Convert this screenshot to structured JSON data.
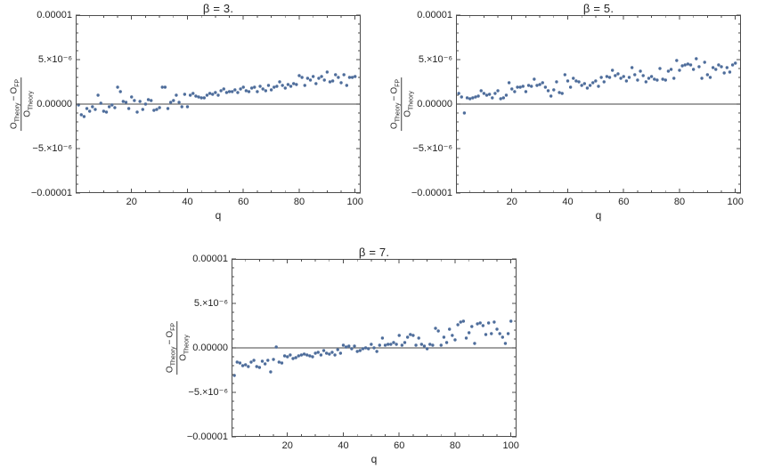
{
  "figure": {
    "background": "#ffffff",
    "point_color": "#4e6d9b",
    "frame_color": "#4c4c4c",
    "zero_line_color": "#6b6b6b",
    "text_color": "#242424"
  },
  "chart_data": [
    {
      "type": "scatter",
      "title": "β = 3.",
      "xlabel": "q",
      "ylabel": "(O_Theory − O_FP) / O_Theory",
      "ylabel_parts": {
        "num_base_a": "O",
        "num_sub_a": "Theory",
        "num_op": "−",
        "num_base_b": "O",
        "num_sub_b": "FP",
        "den_base": "O",
        "den_sub": "Theory"
      },
      "xlim": [
        0,
        102
      ],
      "ylim": [
        -1e-05,
        1e-05
      ],
      "x_ticks": [
        20,
        40,
        60,
        80,
        100
      ],
      "x_minor_step": 5,
      "y_ticks": [
        {
          "value": 1e-05,
          "label": "0.00001"
        },
        {
          "value": 5e-06,
          "label": "5.×10⁻⁶"
        },
        {
          "value": 0,
          "label": "0.00000"
        },
        {
          "value": -5e-06,
          "label": "−5.×10⁻⁶"
        },
        {
          "value": -1e-05,
          "label": "−0.00001"
        }
      ],
      "y_minor_step": 1e-06,
      "zero_line": true,
      "grid": false,
      "legend": null,
      "x": [
        1,
        2,
        3,
        4,
        5,
        6,
        7,
        8,
        9,
        10,
        11,
        12,
        13,
        14,
        15,
        16,
        17,
        18,
        19,
        20,
        21,
        22,
        23,
        24,
        25,
        26,
        27,
        28,
        29,
        30,
        31,
        32,
        33,
        34,
        35,
        36,
        37,
        38,
        39,
        40,
        41,
        42,
        43,
        44,
        45,
        46,
        47,
        48,
        49,
        50,
        51,
        52,
        53,
        54,
        55,
        56,
        57,
        58,
        59,
        60,
        61,
        62,
        63,
        64,
        65,
        66,
        67,
        68,
        69,
        70,
        71,
        72,
        73,
        74,
        75,
        76,
        77,
        78,
        79,
        80,
        81,
        82,
        83,
        84,
        85,
        86,
        87,
        88,
        89,
        90,
        91,
        92,
        93,
        94,
        95,
        96,
        97,
        98,
        99,
        100
      ],
      "y": [
        -1e-07,
        -1.2e-06,
        -1.4e-06,
        -5e-07,
        -8e-07,
        -3e-07,
        -6e-07,
        1e-06,
        1e-07,
        -8e-07,
        -9e-07,
        -3e-07,
        -1e-07,
        -4e-07,
        1.9e-06,
        1.4e-06,
        3e-07,
        2e-07,
        -5e-07,
        8e-07,
        4e-07,
        -9e-07,
        3e-07,
        -6e-07,
        0,
        5e-07,
        4e-07,
        -7e-07,
        -6e-07,
        -4e-07,
        1.9e-06,
        1.9e-06,
        -5e-07,
        2e-07,
        4e-07,
        1e-06,
        2e-07,
        -3e-07,
        1.1e-06,
        -3e-07,
        1e-06,
        1.2e-06,
        9e-07,
        8e-07,
        7e-07,
        7e-07,
        1e-06,
        1.2e-06,
        1.1e-06,
        1.3e-06,
        1e-06,
        1.5e-06,
        1.7e-06,
        1.3e-06,
        1.4e-06,
        1.4e-06,
        1.6e-06,
        1.3e-06,
        1.7e-06,
        1.9e-06,
        1.5e-06,
        1.4e-06,
        1.8e-06,
        1.9e-06,
        1.4e-06,
        2e-06,
        1.7e-06,
        1.5e-06,
        2.1e-06,
        1.6e-06,
        1.9e-06,
        2e-06,
        2.5e-06,
        2.1e-06,
        1.8e-06,
        2.2e-06,
        2e-06,
        2.3e-06,
        2.2e-06,
        3.2e-06,
        3e-06,
        2.1e-06,
        2.9e-06,
        2.7e-06,
        3.1e-06,
        2.3e-06,
        2.9e-06,
        3.1e-06,
        2.7e-06,
        3.6e-06,
        2.5e-06,
        2.6e-06,
        3.3e-06,
        3e-06,
        2.4e-06,
        3.3e-06,
        2.1e-06,
        3e-06,
        3e-06,
        3.1e-06
      ]
    },
    {
      "type": "scatter",
      "title": "β = 5.",
      "xlabel": "q",
      "ylabel": "(O_Theory − O_FP) / O_Theory",
      "ylabel_parts": {
        "num_base_a": "O",
        "num_sub_a": "Theory",
        "num_op": "−",
        "num_base_b": "O",
        "num_sub_b": "FP",
        "den_base": "O",
        "den_sub": "Theory"
      },
      "xlim": [
        0,
        102
      ],
      "ylim": [
        -1e-05,
        1e-05
      ],
      "x_ticks": [
        20,
        40,
        60,
        80,
        100
      ],
      "x_minor_step": 5,
      "y_ticks": [
        {
          "value": 1e-05,
          "label": "0.00001"
        },
        {
          "value": 5e-06,
          "label": "5.×10⁻⁶"
        },
        {
          "value": 0,
          "label": "0.00000"
        },
        {
          "value": -5e-06,
          "label": "−5.×10⁻⁶"
        },
        {
          "value": -1e-05,
          "label": "−0.00001"
        }
      ],
      "y_minor_step": 1e-06,
      "zero_line": true,
      "grid": false,
      "legend": null,
      "x": [
        1,
        2,
        3,
        4,
        5,
        6,
        7,
        8,
        9,
        10,
        11,
        12,
        13,
        14,
        15,
        16,
        17,
        18,
        19,
        20,
        21,
        22,
        23,
        24,
        25,
        26,
        27,
        28,
        29,
        30,
        31,
        32,
        33,
        34,
        35,
        36,
        37,
        38,
        39,
        40,
        41,
        42,
        43,
        44,
        45,
        46,
        47,
        48,
        49,
        50,
        51,
        52,
        53,
        54,
        55,
        56,
        57,
        58,
        59,
        60,
        61,
        62,
        63,
        64,
        65,
        66,
        67,
        68,
        69,
        70,
        71,
        72,
        73,
        74,
        75,
        76,
        77,
        78,
        79,
        80,
        81,
        82,
        83,
        84,
        85,
        86,
        87,
        88,
        89,
        90,
        91,
        92,
        93,
        94,
        95,
        96,
        97,
        98,
        99,
        100
      ],
      "y": [
        1.2e-06,
        8e-07,
        -1e-06,
        7e-07,
        6e-07,
        7e-07,
        8e-07,
        9e-07,
        1.5e-06,
        1.2e-06,
        1e-06,
        1.1e-06,
        7e-07,
        1.2e-06,
        1.5e-06,
        6e-07,
        7e-07,
        1e-06,
        2.4e-06,
        1.7e-06,
        1.4e-06,
        1.9e-06,
        1.9e-06,
        2e-06,
        1.4e-06,
        2.1e-06,
        2e-06,
        2.8e-06,
        2.1e-06,
        2.2e-06,
        2.4e-06,
        1.9e-06,
        1.5e-06,
        9e-07,
        1.6e-06,
        2.5e-06,
        1.3e-06,
        1.2e-06,
        3.3e-06,
        2.6e-06,
        1.9e-06,
        2.9e-06,
        2.6e-06,
        2.5e-06,
        2.1e-06,
        2.3e-06,
        1.8e-06,
        2.1e-06,
        2.4e-06,
        2.6e-06,
        2e-06,
        3e-06,
        2.5e-06,
        3.1e-06,
        3e-06,
        3.8e-06,
        3.2e-06,
        3.4e-06,
        2.9e-06,
        3.1e-06,
        2.6e-06,
        3e-06,
        4.1e-06,
        3.3e-06,
        2.7e-06,
        3.7e-06,
        3.2e-06,
        2.5e-06,
        2.9e-06,
        3.1e-06,
        2.8e-06,
        2.7e-06,
        4e-06,
        2.8e-06,
        2.7e-06,
        3.7e-06,
        3.9e-06,
        2.9e-06,
        4.9e-06,
        3.8e-06,
        4.3e-06,
        4.4e-06,
        4.5e-06,
        4.4e-06,
        3.9e-06,
        5.1e-06,
        4.2e-06,
        2.9e-06,
        4.7e-06,
        3.3e-06,
        3e-06,
        4.1e-06,
        3.9e-06,
        4.4e-06,
        4.2e-06,
        3.5e-06,
        4.1e-06,
        3.6e-06,
        4.4e-06,
        4.6e-06
      ]
    },
    {
      "type": "scatter",
      "title": "β = 7.",
      "xlabel": "q",
      "ylabel": "(O_Theory − O_FP) / O_Theory",
      "ylabel_parts": {
        "num_base_a": "O",
        "num_sub_a": "Theory",
        "num_op": "−",
        "num_base_b": "O",
        "num_sub_b": "FP",
        "den_base": "O",
        "den_sub": "Theory"
      },
      "xlim": [
        0,
        102
      ],
      "ylim": [
        -1e-05,
        1e-05
      ],
      "x_ticks": [
        20,
        40,
        60,
        80,
        100
      ],
      "x_minor_step": 5,
      "y_ticks": [
        {
          "value": 1e-05,
          "label": "0.00001"
        },
        {
          "value": 5e-06,
          "label": "5.×10⁻⁶"
        },
        {
          "value": 0,
          "label": "0.00000"
        },
        {
          "value": -5e-06,
          "label": "−5.×10⁻⁶"
        },
        {
          "value": -1e-05,
          "label": "−0.00001"
        }
      ],
      "y_minor_step": 1e-06,
      "zero_line": true,
      "grid": false,
      "legend": null,
      "x": [
        1,
        2,
        3,
        4,
        5,
        6,
        7,
        8,
        9,
        10,
        11,
        12,
        13,
        14,
        15,
        16,
        17,
        18,
        19,
        20,
        21,
        22,
        23,
        24,
        25,
        26,
        27,
        28,
        29,
        30,
        31,
        32,
        33,
        34,
        35,
        36,
        37,
        38,
        39,
        40,
        41,
        42,
        43,
        44,
        45,
        46,
        47,
        48,
        49,
        50,
        51,
        52,
        53,
        54,
        55,
        56,
        57,
        58,
        59,
        60,
        61,
        62,
        63,
        64,
        65,
        66,
        67,
        68,
        69,
        70,
        71,
        72,
        73,
        74,
        75,
        76,
        77,
        78,
        79,
        80,
        81,
        82,
        83,
        84,
        85,
        86,
        87,
        88,
        89,
        90,
        91,
        92,
        93,
        94,
        95,
        96,
        97,
        98,
        99,
        100
      ],
      "y": [
        -3.1e-06,
        -1.6e-06,
        -1.7e-06,
        -2e-06,
        -1.9e-06,
        -2.1e-06,
        -1.6e-06,
        -1.4e-06,
        -2.1e-06,
        -2.2e-06,
        -1.5e-06,
        -1.8e-06,
        -1.4e-06,
        -2.7e-06,
        -1.3e-06,
        1e-07,
        -1.6e-06,
        -1.7e-06,
        -9e-07,
        -1e-06,
        -8e-07,
        -1.2e-06,
        -1.1e-06,
        -9e-07,
        -8e-07,
        -7e-07,
        -8e-07,
        -9e-07,
        -1e-06,
        -6e-07,
        -5e-07,
        -8e-07,
        -3e-07,
        -6e-07,
        -7e-07,
        -5e-07,
        -8e-07,
        -2e-07,
        -6e-07,
        3e-07,
        1e-07,
        2e-07,
        -1e-07,
        2e-07,
        -4e-07,
        -3e-07,
        -1e-07,
        0,
        -1e-07,
        4e-07,
        0,
        -4e-07,
        3e-07,
        1.1e-06,
        3e-07,
        4e-07,
        4e-07,
        6e-07,
        4e-07,
        1.4e-06,
        3e-07,
        6e-07,
        1.2e-06,
        1.5e-06,
        1.4e-06,
        3e-07,
        1.1e-06,
        4e-07,
        2e-07,
        -1e-07,
        4e-07,
        3e-07,
        2.2e-06,
        1.9e-06,
        3e-07,
        1.2e-06,
        6e-07,
        2.1e-06,
        1.4e-06,
        9e-07,
        2.6e-06,
        2.9e-06,
        3e-06,
        1.1e-06,
        1.7e-06,
        2.4e-06,
        5e-07,
        2.7e-06,
        2.8e-06,
        2.5e-06,
        1.5e-06,
        2.8e-06,
        1.6e-06,
        2.9e-06,
        2.1e-06,
        1.6e-06,
        1.2e-06,
        5e-07,
        1.6e-06,
        3e-06
      ]
    }
  ]
}
